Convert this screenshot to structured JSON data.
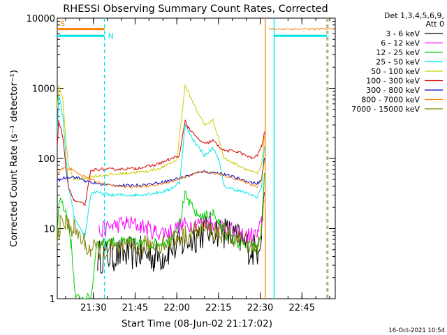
{
  "chart_data": {
    "type": "line",
    "title": "RHESSI Observing Summary Count Rates, Corrected",
    "xlabel": "Start Time (08-Jun-02 21:17:02)",
    "ylabel": "Corrected Count Rate (s⁻¹ detector⁻¹)",
    "yscale": "log",
    "ylim": [
      1,
      10000
    ],
    "xlim_minutes_after_start": [
      0,
      100
    ],
    "x_ticks": [
      {
        "minute": 13,
        "label": "21:30"
      },
      {
        "minute": 28,
        "label": "21:45"
      },
      {
        "minute": 43,
        "label": "22:00"
      },
      {
        "minute": 58,
        "label": "22:15"
      },
      {
        "minute": 73,
        "label": "22:30"
      },
      {
        "minute": 88,
        "label": "22:45"
      }
    ],
    "y_ticks": [
      {
        "value": 1,
        "label": "1"
      },
      {
        "value": 10,
        "label": "10"
      },
      {
        "value": 100,
        "label": "100"
      },
      {
        "value": 1000,
        "label": "1000"
      },
      {
        "value": 10000,
        "label": "10000"
      }
    ],
    "legend_header": [
      "Det 1,3,4,5,6,9,",
      "Att 0"
    ],
    "legend_position": "outside-right",
    "series": [
      {
        "name": "3 - 6 keV",
        "color": "#000000",
        "noise": 0.5,
        "points": [
          [
            0.5,
            null
          ],
          [
            14,
            null
          ],
          [
            14.5,
            4
          ],
          [
            20,
            4.2
          ],
          [
            30,
            4.5
          ],
          [
            35,
            4
          ],
          [
            38,
            4.2
          ],
          [
            40,
            5
          ],
          [
            45,
            6
          ],
          [
            50,
            8
          ],
          [
            55,
            10
          ],
          [
            60,
            9
          ],
          [
            65,
            7
          ],
          [
            70,
            5
          ],
          [
            72,
            5
          ],
          [
            73.5,
            10
          ],
          [
            74.5,
            40
          ]
        ]
      },
      {
        "name": "6 - 12 keV",
        "color": "#ff00ff",
        "noise": 0.25,
        "points": [
          [
            14,
            null
          ],
          [
            15,
            9
          ],
          [
            20,
            11
          ],
          [
            25,
            12
          ],
          [
            30,
            11
          ],
          [
            35,
            9
          ],
          [
            40,
            9
          ],
          [
            45,
            11
          ],
          [
            50,
            12
          ],
          [
            55,
            12
          ],
          [
            60,
            11
          ],
          [
            65,
            8
          ],
          [
            70,
            8
          ],
          [
            72,
            8
          ],
          [
            73.5,
            12
          ],
          [
            74.5,
            40
          ]
        ]
      },
      {
        "name": "12 - 25 keV",
        "color": "#00cc00",
        "noise": 0.15,
        "points": [
          [
            0,
            9
          ],
          [
            0.5,
            20
          ],
          [
            1.5,
            25
          ],
          [
            3,
            18
          ],
          [
            4,
            12
          ],
          [
            5,
            6
          ],
          [
            6,
            2
          ],
          [
            6.5,
            1
          ],
          [
            12,
            1
          ],
          [
            13,
            2
          ],
          [
            14,
            6
          ],
          [
            18,
            6.5
          ],
          [
            25,
            6.5
          ],
          [
            33,
            6
          ],
          [
            40,
            6.5
          ],
          [
            44,
            12
          ],
          [
            46,
            30
          ],
          [
            47,
            25
          ],
          [
            50,
            16
          ],
          [
            53,
            15
          ],
          [
            56,
            17
          ],
          [
            58,
            12
          ],
          [
            61,
            8
          ],
          [
            65,
            6
          ],
          [
            70,
            5.5
          ],
          [
            72,
            5
          ],
          [
            73.5,
            10
          ],
          [
            74.5,
            60
          ]
        ]
      },
      {
        "name": "25 - 50 keV",
        "color": "#00e6e6",
        "noise": 0.05,
        "points": [
          [
            0,
            200
          ],
          [
            0.5,
            800
          ],
          [
            2,
            400
          ],
          [
            3,
            120
          ],
          [
            4,
            40
          ],
          [
            6,
            15
          ],
          [
            8,
            10
          ],
          [
            10,
            8
          ],
          [
            12,
            30
          ],
          [
            13,
            33
          ],
          [
            20,
            30
          ],
          [
            28,
            30
          ],
          [
            35,
            32
          ],
          [
            40,
            35
          ],
          [
            44,
            45
          ],
          [
            46,
            300
          ],
          [
            47,
            250
          ],
          [
            50,
            160
          ],
          [
            53,
            110
          ],
          [
            56,
            140
          ],
          [
            58,
            100
          ],
          [
            60,
            40
          ],
          [
            65,
            35
          ],
          [
            70,
            30
          ],
          [
            72,
            28
          ],
          [
            73.5,
            40
          ],
          [
            74.5,
            150
          ]
        ]
      },
      {
        "name": "50 - 100 keV",
        "color": "#cccc00",
        "noise": 0.04,
        "points": [
          [
            0,
            500
          ],
          [
            0.5,
            1100
          ],
          [
            2,
            700
          ],
          [
            3,
            200
          ],
          [
            4,
            80
          ],
          [
            6,
            50
          ],
          [
            10,
            52
          ],
          [
            12,
            55
          ],
          [
            18,
            58
          ],
          [
            25,
            62
          ],
          [
            32,
            65
          ],
          [
            38,
            75
          ],
          [
            43,
            95
          ],
          [
            46,
            1100
          ],
          [
            47,
            900
          ],
          [
            50,
            500
          ],
          [
            53,
            300
          ],
          [
            56,
            350
          ],
          [
            58,
            200
          ],
          [
            60,
            100
          ],
          [
            65,
            80
          ],
          [
            70,
            65
          ],
          [
            72,
            60
          ],
          [
            73.5,
            80
          ],
          [
            74.5,
            200
          ]
        ]
      },
      {
        "name": "100 - 300 keV",
        "color": "#dd0000",
        "noise": 0.04,
        "points": [
          [
            0,
            150
          ],
          [
            0.5,
            350
          ],
          [
            2,
            200
          ],
          [
            3,
            80
          ],
          [
            4,
            40
          ],
          [
            6,
            25
          ],
          [
            10,
            22
          ],
          [
            12,
            65
          ],
          [
            14,
            70
          ],
          [
            20,
            70
          ],
          [
            28,
            72
          ],
          [
            35,
            80
          ],
          [
            40,
            95
          ],
          [
            44,
            110
          ],
          [
            46,
            350
          ],
          [
            47,
            280
          ],
          [
            50,
            200
          ],
          [
            53,
            160
          ],
          [
            56,
            180
          ],
          [
            58,
            150
          ],
          [
            60,
            130
          ],
          [
            65,
            125
          ],
          [
            70,
            100
          ],
          [
            72,
            110
          ],
          [
            73.5,
            150
          ],
          [
            74.5,
            230
          ]
        ]
      },
      {
        "name": "300 - 800 keV",
        "color": "#0000cc",
        "noise": 0.04,
        "points": [
          [
            0,
            48
          ],
          [
            2,
            52
          ],
          [
            5,
            55
          ],
          [
            8,
            52
          ],
          [
            10,
            48
          ],
          [
            12,
            45
          ],
          [
            18,
            42
          ],
          [
            25,
            41
          ],
          [
            32,
            42
          ],
          [
            40,
            48
          ],
          [
            46,
            55
          ],
          [
            52,
            65
          ],
          [
            58,
            62
          ],
          [
            65,
            52
          ],
          [
            70,
            45
          ],
          [
            72,
            44
          ],
          [
            73.5,
            50
          ],
          [
            74.5,
            100
          ]
        ]
      },
      {
        "name": "800 - 7000 keV",
        "color": "#ff8000",
        "noise": 0.03,
        "points": [
          [
            0,
            60
          ],
          [
            2,
            72
          ],
          [
            5,
            70
          ],
          [
            8,
            60
          ],
          [
            10,
            55
          ],
          [
            12,
            50
          ],
          [
            18,
            42
          ],
          [
            25,
            39
          ],
          [
            32,
            40
          ],
          [
            40,
            45
          ],
          [
            46,
            55
          ],
          [
            52,
            65
          ],
          [
            58,
            60
          ],
          [
            65,
            50
          ],
          [
            70,
            42
          ],
          [
            72,
            40
          ],
          [
            73.5,
            50
          ],
          [
            74.5,
            90
          ],
          [
            75,
            null
          ],
          [
            76,
            7000
          ],
          [
            100,
            7000
          ]
        ]
      },
      {
        "name": "7000 - 15000 keV",
        "color": "#808000",
        "noise": 0.3,
        "points": [
          [
            0,
            8
          ],
          [
            1,
            11
          ],
          [
            3,
            12
          ],
          [
            6,
            10
          ],
          [
            10,
            6
          ],
          [
            12,
            5
          ],
          [
            20,
            5
          ],
          [
            30,
            5.5
          ],
          [
            40,
            6.5
          ],
          [
            46,
            8
          ],
          [
            52,
            10
          ],
          [
            58,
            9
          ],
          [
            65,
            7
          ],
          [
            70,
            6
          ],
          [
            72,
            5.5
          ],
          [
            73.5,
            8
          ],
          [
            74.5,
            30
          ]
        ]
      }
    ],
    "annotations": {
      "segments": [
        {
          "label": "S",
          "color": "#ff8000",
          "x_start": 0,
          "x_end": 17,
          "value": 7000
        },
        {
          "label": "N",
          "color": "#00e6e6",
          "x_start": 0,
          "x_end": 17,
          "value": 5600
        },
        {
          "label": "",
          "color": "#00e6e6",
          "x_start": 78,
          "x_end": 97,
          "value": 5600
        }
      ],
      "vlines": [
        {
          "x": 17,
          "color": "#00e6e6",
          "style": "dashed"
        },
        {
          "x": 74.8,
          "color": "#ff8000",
          "style": "solid"
        },
        {
          "x": 78,
          "color": "#00e6e6",
          "style": "solid"
        },
        {
          "x": 97,
          "color": "#ff8000",
          "style": "dashed"
        },
        {
          "x": 97.4,
          "color": "#00e6e6",
          "style": "dashed"
        }
      ]
    },
    "timestamp": "16-Oct-2021 10:54"
  }
}
